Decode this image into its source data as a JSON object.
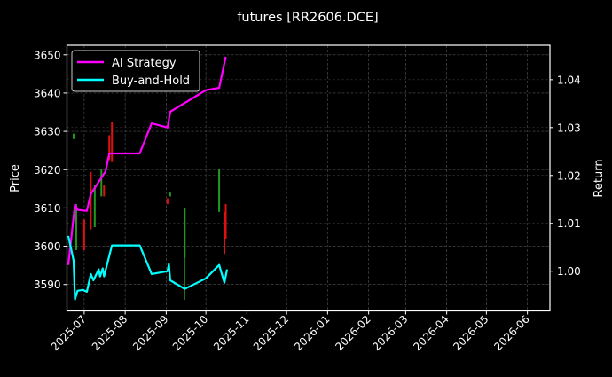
{
  "chart_data": {
    "type": "line",
    "title": "futures [RR2606.DCE]",
    "ylabel": "Price",
    "y2label": "Return",
    "xlim": [
      "2025-06-18",
      "2026-06-18"
    ],
    "ylim": [
      3583.1,
      3652.5
    ],
    "y2lim": [
      0.9917,
      1.0472
    ],
    "x_ticks": [
      "2025-07",
      "2025-08",
      "2025-09",
      "2025-10",
      "2025-11",
      "2025-12",
      "2026-01",
      "2026-02",
      "2026-03",
      "2026-04",
      "2026-05",
      "2026-06"
    ],
    "y_ticks": [
      3590,
      3600,
      3610,
      3620,
      3630,
      3640,
      3650
    ],
    "y2_ticks": [
      1.0,
      1.01,
      1.02,
      1.03,
      1.04
    ],
    "grid": true,
    "legend": "top-left",
    "colors": {
      "background": "#000000",
      "up": "#1f9a1f",
      "down": "#e01010",
      "strategy": "#ff00ff",
      "buyhold": "#00ffff",
      "grid": "#555555",
      "axis": "#ffffff"
    },
    "candles": [
      {
        "date": "2025-06-23",
        "open": 3628.0,
        "high": 3629.4,
        "low": 3628.0,
        "close": 3629.4
      },
      {
        "date": "2025-06-25",
        "open": 3599,
        "high": 3611,
        "low": 3599,
        "close": 3611
      },
      {
        "date": "2025-07-01",
        "open": 3607,
        "high": 3607,
        "low": 3599,
        "close": 3599
      },
      {
        "date": "2025-07-06",
        "open": 3619.4,
        "high": 3619.4,
        "low": 3604.4,
        "close": 3604.4
      },
      {
        "date": "2025-07-09",
        "open": 3605,
        "high": 3616,
        "low": 3605,
        "close": 3616
      },
      {
        "date": "2025-07-14",
        "open": 3613,
        "high": 3620,
        "low": 3613,
        "close": 3620
      },
      {
        "date": "2025-07-16",
        "open": 3616,
        "high": 3616,
        "low": 3613,
        "close": 3613
      },
      {
        "date": "2025-07-20",
        "open": 3629,
        "high": 3629,
        "low": 3622.5,
        "close": 3622.5
      },
      {
        "date": "2025-07-22",
        "open": 3632.4,
        "high": 3632.4,
        "low": 3622,
        "close": 3622
      },
      {
        "date": "2025-09-02",
        "open": 3612.5,
        "high": 3612.5,
        "low": 3611,
        "close": 3611
      },
      {
        "date": "2025-09-04",
        "open": 3613,
        "high": 3614,
        "low": 3613,
        "close": 3614
      },
      {
        "date": "2025-09-15",
        "open": 3597,
        "high": 3610,
        "low": 3586,
        "close": 3610
      },
      {
        "date": "2025-10-11",
        "open": 3609,
        "high": 3620,
        "low": 3609,
        "close": 3620
      },
      {
        "date": "2025-10-15",
        "open": 3609,
        "high": 3609,
        "low": 3598,
        "close": 3598
      },
      {
        "date": "2025-10-16",
        "open": 3611,
        "high": 3611,
        "low": 3602,
        "close": 3602
      }
    ],
    "series": [
      {
        "name": "AI Strategy",
        "axis": "right",
        "points": [
          [
            "2025-06-19",
            1.0013
          ],
          [
            "2025-06-24",
            1.0139
          ],
          [
            "2025-06-25",
            1.0135
          ],
          [
            "2025-06-26",
            1.0128
          ],
          [
            "2025-07-03",
            1.0126
          ],
          [
            "2025-07-06",
            1.0161
          ],
          [
            "2025-07-16",
            1.0204
          ],
          [
            "2025-07-17",
            1.0207
          ],
          [
            "2025-07-20",
            1.0246
          ],
          [
            "2025-08-12",
            1.0246
          ],
          [
            "2025-08-21",
            1.0309
          ],
          [
            "2025-09-02",
            1.03
          ],
          [
            "2025-09-04",
            1.0333
          ],
          [
            "2025-10-01",
            1.0378
          ],
          [
            "2025-10-11",
            1.0383
          ],
          [
            "2025-10-16",
            1.0448
          ]
        ]
      },
      {
        "name": "Buy-and-Hold",
        "axis": "right",
        "points": [
          [
            "2025-06-19",
            1.0074
          ],
          [
            "2025-06-23",
            1.0022
          ],
          [
            "2025-06-24",
            0.9941
          ],
          [
            "2025-06-26",
            0.9959
          ],
          [
            "2025-06-30",
            0.9961
          ],
          [
            "2025-07-03",
            0.9957
          ],
          [
            "2025-07-06",
            0.9994
          ],
          [
            "2025-07-08",
            0.9981
          ],
          [
            "2025-07-12",
            1.0004
          ],
          [
            "2025-07-13",
            0.9989
          ],
          [
            "2025-07-15",
            1.0006
          ],
          [
            "2025-07-16",
            0.9989
          ],
          [
            "2025-07-22",
            1.0054
          ],
          [
            "2025-08-12",
            1.0054
          ],
          [
            "2025-08-21",
            0.9994
          ],
          [
            "2025-09-02",
            1.0
          ],
          [
            "2025-09-03",
            1.0015
          ],
          [
            "2025-09-04",
            0.9981
          ],
          [
            "2025-09-15",
            0.9963
          ],
          [
            "2025-10-01",
            0.9985
          ],
          [
            "2025-10-11",
            1.0013
          ],
          [
            "2025-10-15",
            0.9976
          ],
          [
            "2025-10-17",
            1.0004
          ]
        ]
      }
    ]
  }
}
